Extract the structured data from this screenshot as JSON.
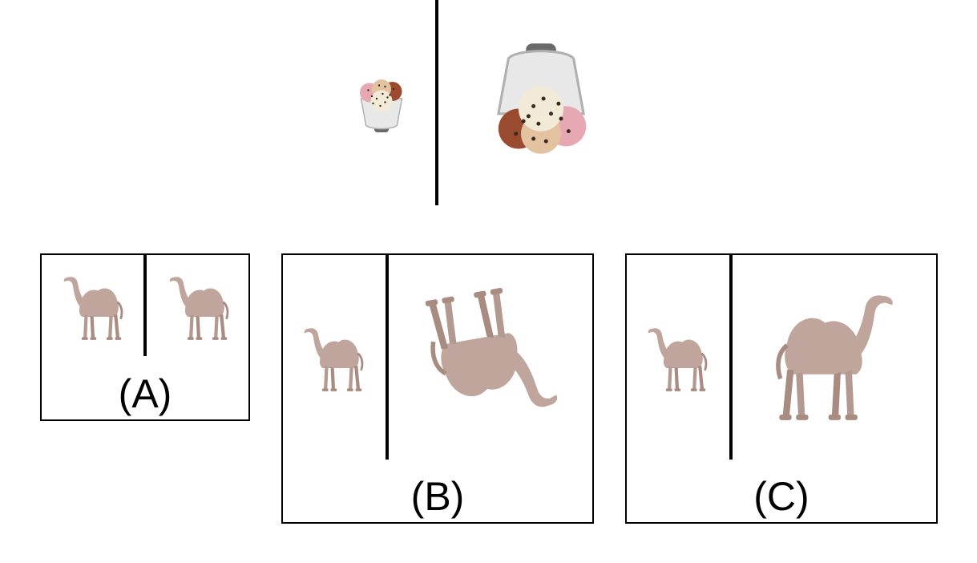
{
  "colors": {
    "camel": "#bfa59b",
    "camel_shade": "#a88c81",
    "line": "#000000"
  },
  "example": {
    "left_image": "ice-cream-cup-small",
    "right_image": "ice-cream-cup-large-tilted"
  },
  "options": [
    {
      "label": "(A)",
      "left_image": "camel-small",
      "right_image": "camel-small"
    },
    {
      "label": "(B)",
      "left_image": "camel-small",
      "right_image": "camel-large-upside-down"
    },
    {
      "label": "(C)",
      "left_image": "camel-small",
      "right_image": "camel-large-mirrored"
    }
  ]
}
